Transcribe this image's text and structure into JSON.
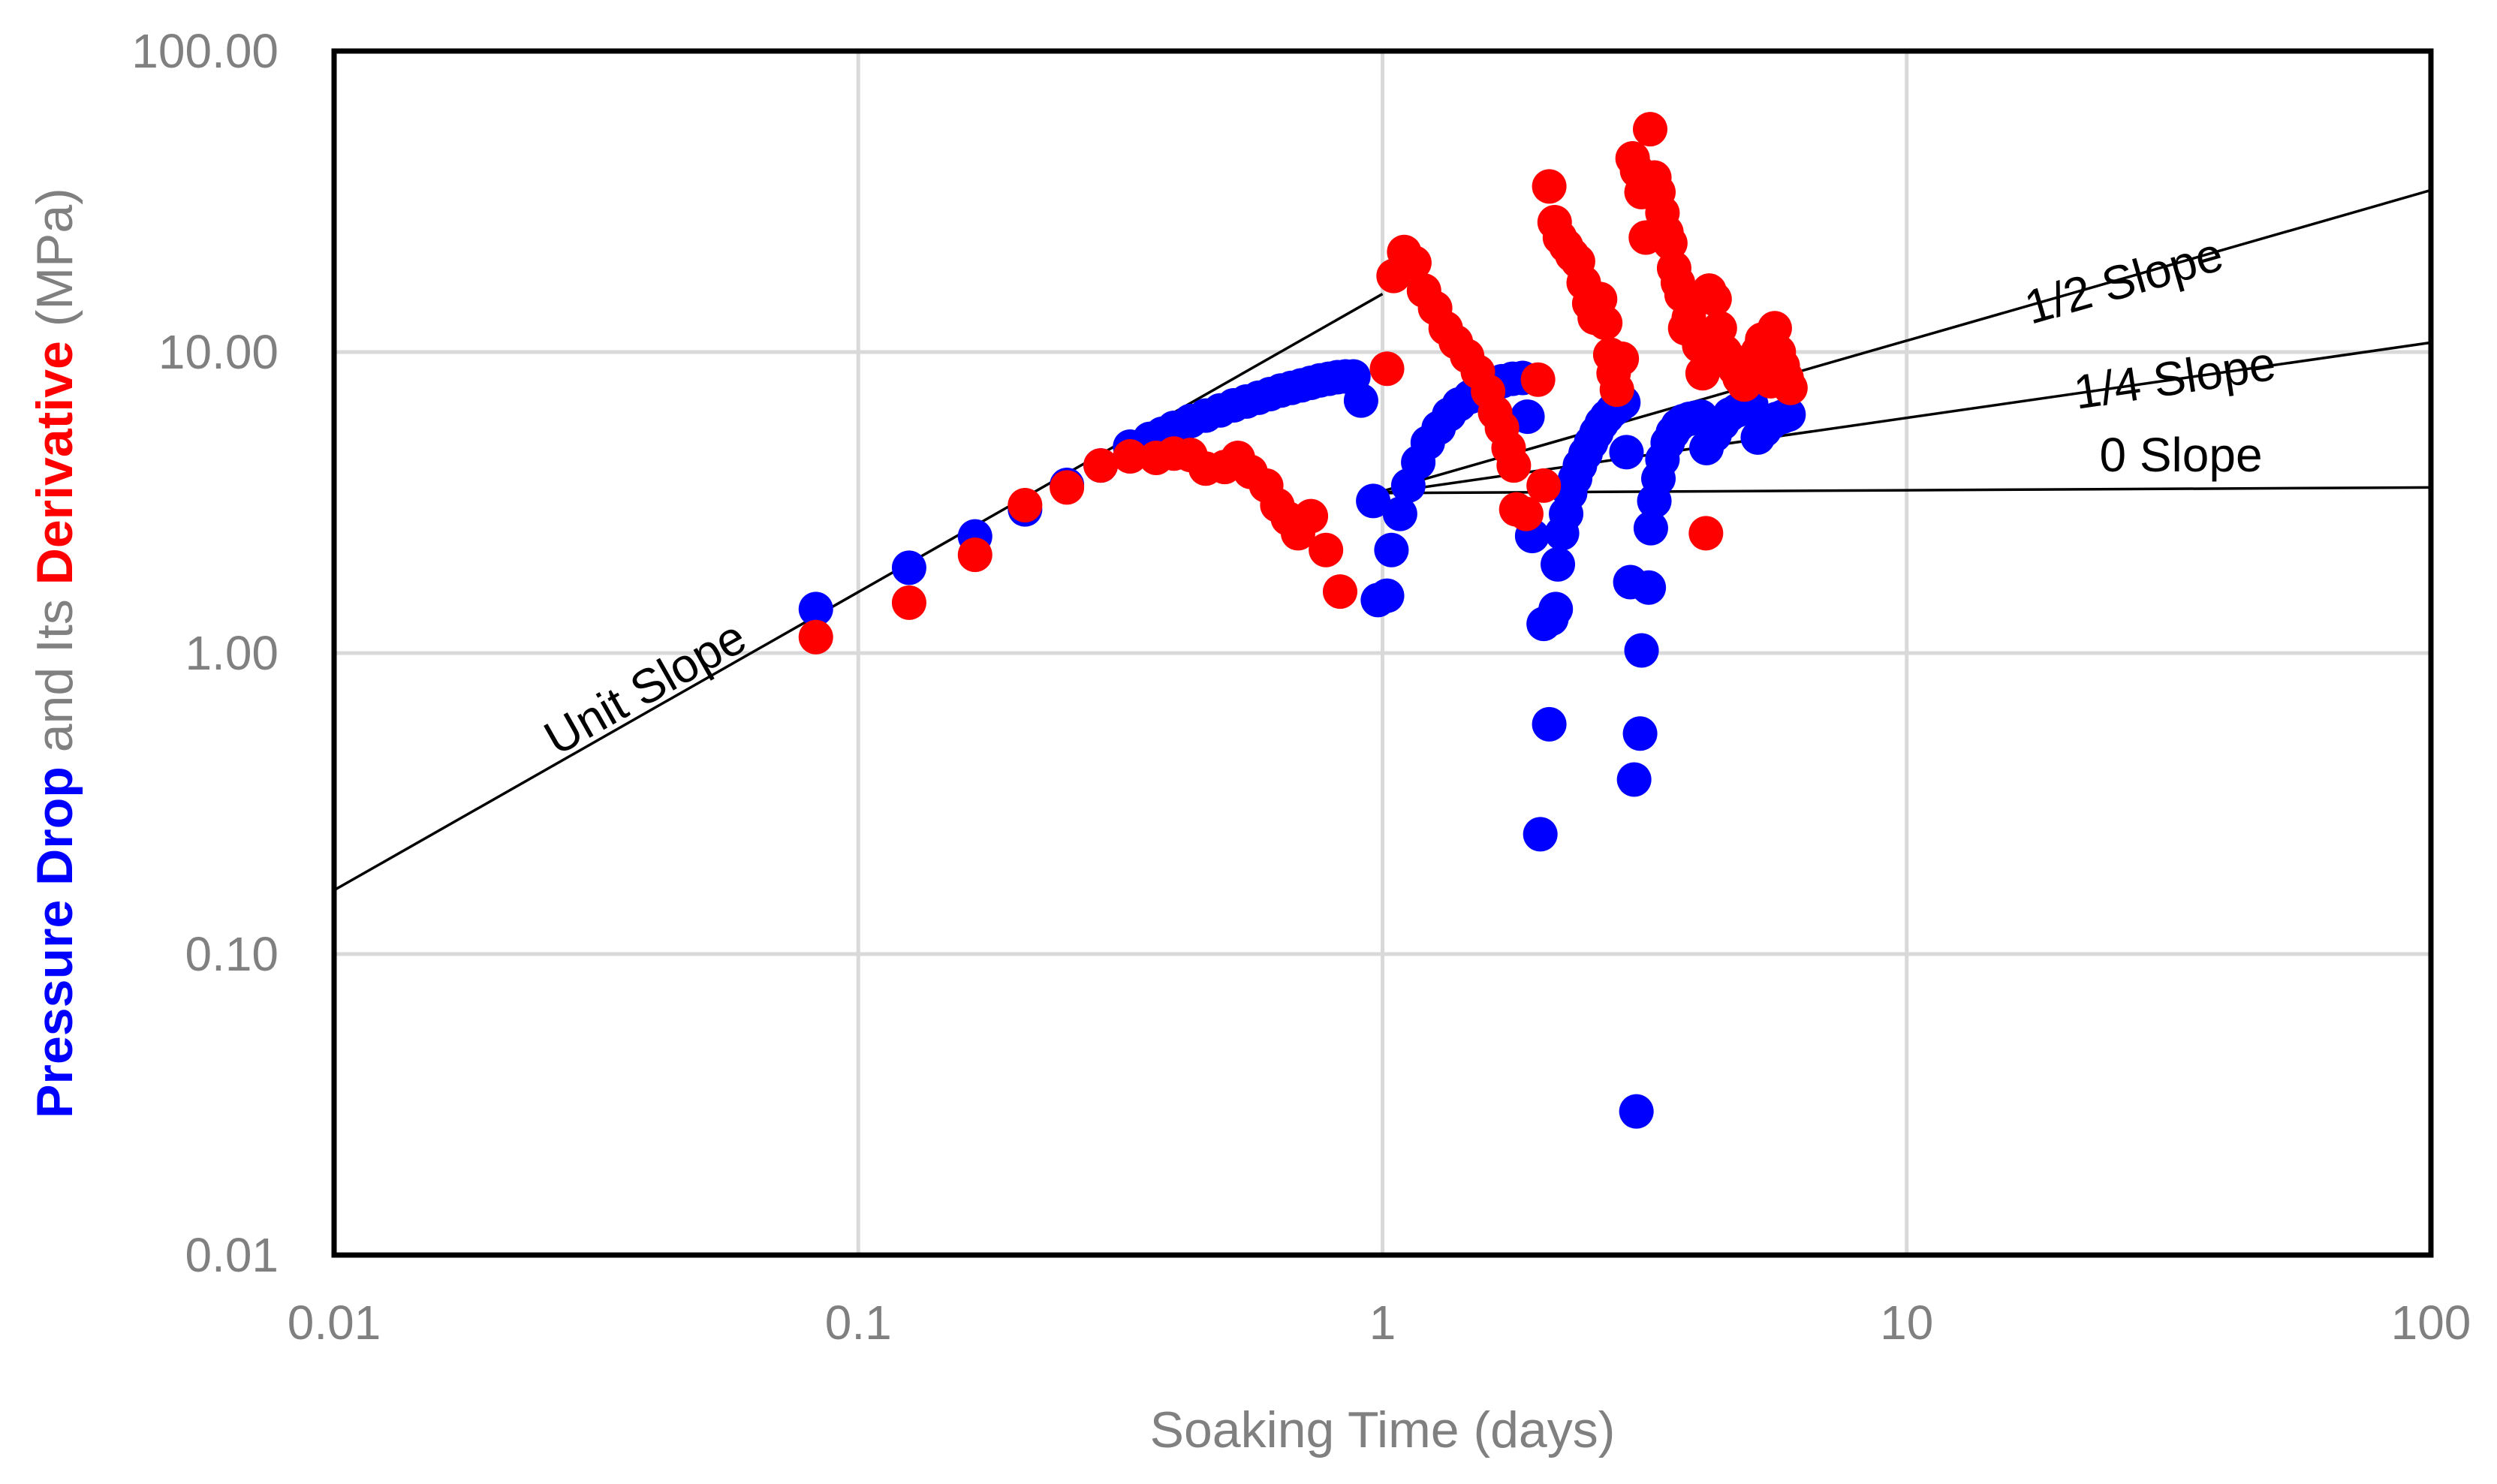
{
  "chart_data": {
    "type": "scatter",
    "title": "",
    "x_scale": "log",
    "y_scale": "log",
    "xlim": [
      0.01,
      100
    ],
    "ylim": [
      0.01,
      100
    ],
    "grid": true,
    "legend": "none",
    "xlabel": "Soaking Time (days)",
    "ylabel_parts": [
      {
        "text": "Pressure Drop",
        "color": "#0000ff",
        "bold": true
      },
      {
        "text": " and Its ",
        "color": "#808080",
        "bold": false
      },
      {
        "text": "Derivative",
        "color": "#ff0000",
        "bold": true
      },
      {
        "text": " (MPa)",
        "color": "#808080",
        "bold": false
      }
    ],
    "x_ticks": [
      {
        "value": 0.01,
        "label": "0.01"
      },
      {
        "value": 0.1,
        "label": "0.1"
      },
      {
        "value": 1,
        "label": "1"
      },
      {
        "value": 10,
        "label": "10"
      },
      {
        "value": 100,
        "label": "100"
      }
    ],
    "y_ticks": [
      {
        "value": 0.01,
        "label": "0.01"
      },
      {
        "value": 0.1,
        "label": "0.10"
      },
      {
        "value": 1,
        "label": "1.00"
      },
      {
        "value": 10,
        "label": "10.00"
      },
      {
        "value": 100,
        "label": "100.00"
      }
    ],
    "series": [
      {
        "key": "pressure_drop",
        "color": "#0000ff",
        "points": [
          [
            0.083,
            1.4
          ],
          [
            0.125,
            1.92
          ],
          [
            0.167,
            2.44
          ],
          [
            0.208,
            3.0
          ],
          [
            0.25,
            3.62
          ],
          [
            0.29,
            4.2
          ],
          [
            0.33,
            4.85
          ],
          [
            0.36,
            5.15
          ],
          [
            0.38,
            5.35
          ],
          [
            0.4,
            5.6
          ],
          [
            0.43,
            5.9
          ],
          [
            0.46,
            6.15
          ],
          [
            0.49,
            6.4
          ],
          [
            0.52,
            6.65
          ],
          [
            0.55,
            6.85
          ],
          [
            0.58,
            7.05
          ],
          [
            0.61,
            7.25
          ],
          [
            0.64,
            7.45
          ],
          [
            0.67,
            7.6
          ],
          [
            0.7,
            7.75
          ],
          [
            0.73,
            7.9
          ],
          [
            0.76,
            8.05
          ],
          [
            0.79,
            8.15
          ],
          [
            0.82,
            8.25
          ],
          [
            0.85,
            8.3
          ],
          [
            0.88,
            8.3
          ],
          [
            0.91,
            6.9
          ],
          [
            0.96,
            3.2
          ],
          [
            0.98,
            1.5
          ],
          [
            1.02,
            1.55
          ],
          [
            1.04,
            2.2
          ],
          [
            1.08,
            2.9
          ],
          [
            1.12,
            3.6
          ],
          [
            1.17,
            4.3
          ],
          [
            1.22,
            5.0
          ],
          [
            1.28,
            5.6
          ],
          [
            1.34,
            6.2
          ],
          [
            1.4,
            6.7
          ],
          [
            1.47,
            7.1
          ],
          [
            1.54,
            7.5
          ],
          [
            1.61,
            7.8
          ],
          [
            1.69,
            8.0
          ],
          [
            1.77,
            8.15
          ],
          [
            1.85,
            8.2
          ],
          [
            1.89,
            6.1
          ],
          [
            1.93,
            2.45
          ],
          [
            2.0,
            0.25
          ],
          [
            2.03,
            1.25
          ],
          [
            2.08,
            0.58
          ],
          [
            2.1,
            1.3
          ],
          [
            2.14,
            1.4
          ],
          [
            2.16,
            1.97
          ],
          [
            2.2,
            2.5
          ],
          [
            2.24,
            2.9
          ],
          [
            2.28,
            3.4
          ],
          [
            2.33,
            3.8
          ],
          [
            2.38,
            4.2
          ],
          [
            2.44,
            4.6
          ],
          [
            2.5,
            5.0
          ],
          [
            2.56,
            5.4
          ],
          [
            2.62,
            5.8
          ],
          [
            2.68,
            6.1
          ],
          [
            2.75,
            6.4
          ],
          [
            2.82,
            6.6
          ],
          [
            2.88,
            6.8
          ],
          [
            2.92,
            4.65
          ],
          [
            2.97,
            1.72
          ],
          [
            3.02,
            0.38
          ],
          [
            3.05,
            0.03
          ],
          [
            3.1,
            0.54
          ],
          [
            3.12,
            1.02
          ],
          [
            3.22,
            1.65
          ],
          [
            3.25,
            2.6
          ],
          [
            3.3,
            3.2
          ],
          [
            3.36,
            3.8
          ],
          [
            3.42,
            4.4
          ],
          [
            3.5,
            5.0
          ],
          [
            3.58,
            5.4
          ],
          [
            3.66,
            5.7
          ],
          [
            3.75,
            5.9
          ],
          [
            3.85,
            6.0
          ],
          [
            3.95,
            6.05
          ],
          [
            4.05,
            6.1
          ],
          [
            4.15,
            4.8
          ],
          [
            4.3,
            5.3
          ],
          [
            4.45,
            5.8
          ],
          [
            4.6,
            6.2
          ],
          [
            4.75,
            6.4
          ],
          [
            4.9,
            6.6
          ],
          [
            5.05,
            6.7
          ],
          [
            5.2,
            5.2
          ],
          [
            5.35,
            5.5
          ],
          [
            5.5,
            5.8
          ],
          [
            5.65,
            6.0
          ],
          [
            5.8,
            6.1
          ],
          [
            5.95,
            6.2
          ]
        ]
      },
      {
        "key": "derivative",
        "color": "#ff0000",
        "points": [
          [
            0.083,
            1.13
          ],
          [
            0.125,
            1.47
          ],
          [
            0.167,
            2.12
          ],
          [
            0.208,
            3.1
          ],
          [
            0.25,
            3.55
          ],
          [
            0.29,
            4.2
          ],
          [
            0.33,
            4.5
          ],
          [
            0.37,
            4.45
          ],
          [
            0.4,
            4.6
          ],
          [
            0.43,
            4.55
          ],
          [
            0.46,
            4.1
          ],
          [
            0.5,
            4.15
          ],
          [
            0.53,
            4.45
          ],
          [
            0.56,
            4.0
          ],
          [
            0.6,
            3.6
          ],
          [
            0.63,
            3.1
          ],
          [
            0.66,
            2.8
          ],
          [
            0.69,
            2.5
          ],
          [
            0.73,
            2.85
          ],
          [
            0.78,
            2.2
          ],
          [
            0.83,
            1.6
          ],
          [
            1.02,
            8.8
          ],
          [
            1.05,
            17.9
          ],
          [
            1.1,
            21.5
          ],
          [
            1.15,
            19.8
          ],
          [
            1.2,
            16.0
          ],
          [
            1.26,
            14.0
          ],
          [
            1.32,
            12.0
          ],
          [
            1.38,
            10.8
          ],
          [
            1.45,
            9.7
          ],
          [
            1.52,
            8.6
          ],
          [
            1.59,
            7.4
          ],
          [
            1.64,
            6.3
          ],
          [
            1.69,
            5.6
          ],
          [
            1.74,
            4.8
          ],
          [
            1.78,
            4.2
          ],
          [
            1.8,
            3.0
          ],
          [
            1.88,
            2.9
          ],
          [
            1.98,
            8.1
          ],
          [
            2.03,
            3.6
          ],
          [
            2.08,
            35.5
          ],
          [
            2.13,
            27.0
          ],
          [
            2.18,
            24.0
          ],
          [
            2.24,
            22.5
          ],
          [
            2.3,
            21.0
          ],
          [
            2.36,
            20.0
          ],
          [
            2.42,
            17.0
          ],
          [
            2.48,
            14.5
          ],
          [
            2.54,
            13.0
          ],
          [
            2.6,
            15.0
          ],
          [
            2.66,
            12.5
          ],
          [
            2.72,
            9.8
          ],
          [
            2.76,
            8.5
          ],
          [
            2.8,
            7.5
          ],
          [
            2.86,
            9.5
          ],
          [
            3.0,
            44.0
          ],
          [
            3.06,
            40.0
          ],
          [
            3.12,
            34.0
          ],
          [
            3.18,
            24.0
          ],
          [
            3.24,
            55.0
          ],
          [
            3.3,
            38.0
          ],
          [
            3.36,
            34.0
          ],
          [
            3.42,
            29.0
          ],
          [
            3.48,
            25.0
          ],
          [
            3.54,
            23.0
          ],
          [
            3.6,
            19.0
          ],
          [
            3.66,
            17.0
          ],
          [
            3.72,
            15.5
          ],
          [
            3.78,
            12.0
          ],
          [
            3.84,
            13.0
          ],
          [
            3.9,
            14.5
          ],
          [
            3.96,
            11.5
          ],
          [
            4.02,
            10.5
          ],
          [
            4.08,
            8.5
          ],
          [
            4.14,
            2.5
          ],
          [
            4.2,
            16.0
          ],
          [
            4.3,
            15.0
          ],
          [
            4.4,
            12.0
          ],
          [
            4.5,
            10.0
          ],
          [
            4.6,
            9.5
          ],
          [
            4.7,
            8.8
          ],
          [
            4.8,
            8.2
          ],
          [
            4.9,
            7.8
          ],
          [
            5.0,
            8.5
          ],
          [
            5.1,
            9.2
          ],
          [
            5.2,
            10.0
          ],
          [
            5.3,
            11.0
          ],
          [
            5.4,
            9.5
          ],
          [
            5.5,
            8.0
          ],
          [
            5.6,
            12.0
          ],
          [
            5.7,
            10.0
          ],
          [
            5.8,
            9.0
          ],
          [
            5.9,
            8.2
          ],
          [
            6.0,
            7.6
          ]
        ]
      }
    ],
    "reference_lines": [
      {
        "label": "Unit Slope",
        "slope": 1,
        "points": [
          [
            0.01,
            0.163
          ],
          [
            1.0,
            15.6
          ]
        ]
      },
      {
        "label": "1/2 Slope",
        "slope": 0.5,
        "points": [
          [
            1.0,
            3.45
          ],
          [
            100,
            34.5
          ]
        ]
      },
      {
        "label": "1/4 Slope",
        "slope": 0.25,
        "points": [
          [
            1.0,
            3.4
          ],
          [
            100,
            10.75
          ]
        ]
      },
      {
        "label": "0 Slope",
        "slope": 0,
        "points": [
          [
            1.0,
            3.4
          ],
          [
            100,
            3.55
          ]
        ]
      }
    ]
  }
}
